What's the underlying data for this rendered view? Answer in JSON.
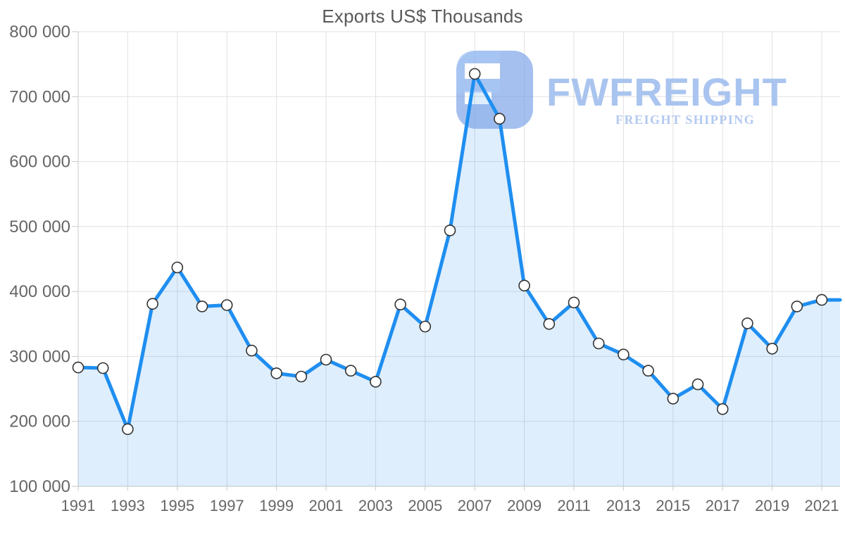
{
  "title": "Exports US$ Thousands",
  "watermark": {
    "brand": "FWFREIGHT",
    "tagline": "FREIGHT SHIPPING",
    "brand_color": "#a9c4ef",
    "tagline_color": "#b3c9f1",
    "logo_color": "rgba(117,158,229,0.65)",
    "logo_highlight_color": "rgba(170,200,245,0.55)"
  },
  "colors": {
    "line": "#1f8ef0",
    "area_fill": "rgba(31,142,240,0.15)",
    "marker_fill": "#ffffff",
    "marker_stroke": "#333333",
    "grid": "#e1e1e1",
    "axis": "#c9c9c9",
    "label": "#666666",
    "title": "#595959"
  },
  "chart_data": {
    "type": "area",
    "title": "Exports US$ Thousands",
    "xlabel": "",
    "ylabel": "",
    "x": [
      1991,
      1992,
      1993,
      1994,
      1995,
      1996,
      1997,
      1998,
      1999,
      2000,
      2001,
      2002,
      2003,
      2004,
      2005,
      2006,
      2007,
      2008,
      2009,
      2010,
      2011,
      2012,
      2013,
      2014,
      2015,
      2016,
      2017,
      2018,
      2019,
      2020,
      2021
    ],
    "values": [
      283000,
      282000,
      188000,
      381000,
      437000,
      377000,
      379000,
      309000,
      274000,
      269000,
      295000,
      278000,
      261000,
      380000,
      346000,
      494000,
      735000,
      666000,
      409000,
      350000,
      383000,
      320000,
      303000,
      278000,
      235000,
      257000,
      219000,
      351000,
      312000,
      377000,
      387000
    ],
    "ylim": [
      100000,
      800000
    ],
    "y_tick_step": 100000,
    "y_tick_labels": [
      "100 000",
      "200 000",
      "300 000",
      "400 000",
      "500 000",
      "600 000",
      "700 000",
      "800 000"
    ],
    "x_tick_labels": [
      "1991",
      "1993",
      "1995",
      "1997",
      "1999",
      "2001",
      "2003",
      "2005",
      "2007",
      "2009",
      "2011",
      "2013",
      "2015",
      "2017",
      "2019",
      "2021"
    ],
    "grid": true,
    "legend": "none",
    "marker": "circle"
  }
}
